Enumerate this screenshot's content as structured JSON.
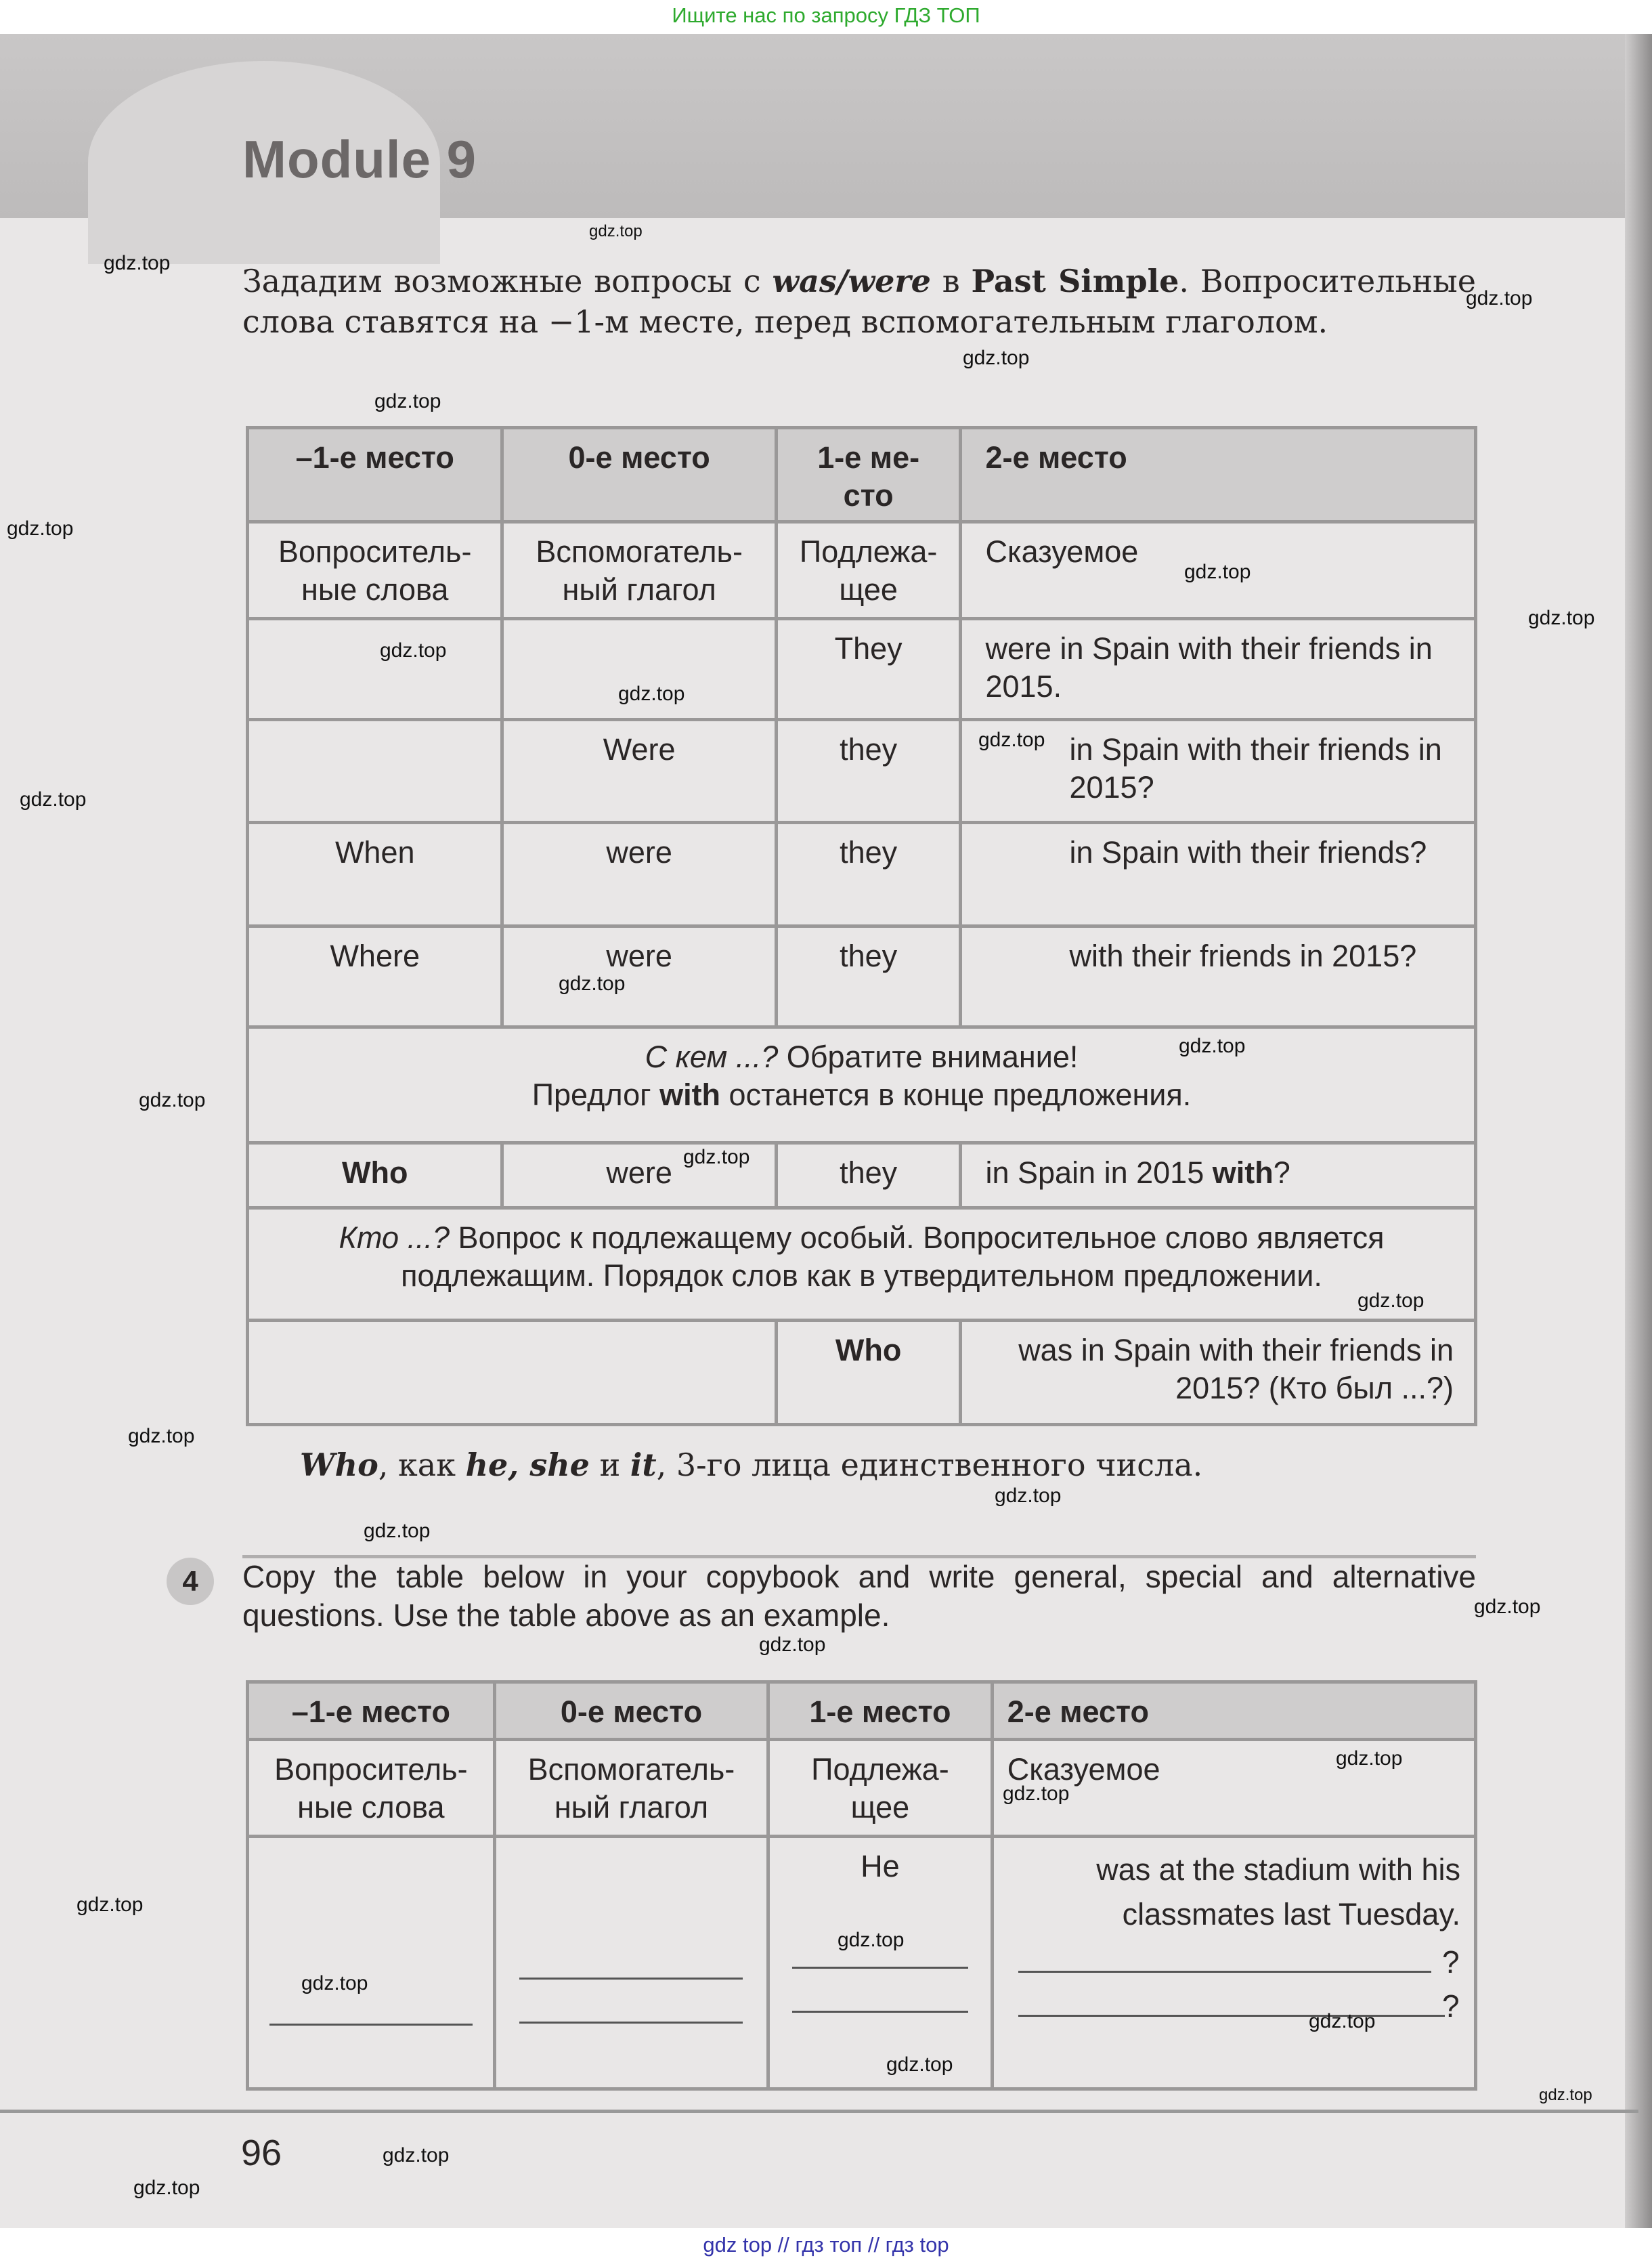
{
  "banner": {
    "text": "Ищите нас по запросу ГДЗ ТОП"
  },
  "header": {
    "title": "Module 9"
  },
  "intro": {
    "p1": "Зададим возможные вопросы с ",
    "p1_italic": "was/were",
    "p1_mid": " в ",
    "p1_bold": "Past Simple",
    "p1_end": ". Вопросительные слова ставятся на −1-м месте, перед вспомогательным глаголом."
  },
  "table1": {
    "headers": [
      "–1-е место",
      "0-е место",
      "1-е ме-\nсто",
      "2-е место"
    ],
    "roles": [
      "Вопроситель-\nные слова",
      "Вспомогатель-\nный глагол",
      "Подлежа-\nщее",
      "Сказуемое"
    ],
    "rows": [
      [
        "",
        "",
        "They",
        "were in Spain with their friends in 2015."
      ],
      [
        "",
        "Were",
        "they",
        "in Spain with their friends in 2015?"
      ],
      [
        "When",
        "were",
        "they",
        "in Spain with their friends?"
      ],
      [
        "Where",
        "were",
        "they",
        "with their friends in 2015?"
      ]
    ],
    "note1": {
      "italic": "С кем ...?",
      "text": " Обратите внимание!",
      "line2_pre": "Предлог ",
      "line2_bold": "with",
      "line2_post": " останется в конце предложения."
    },
    "who_row": {
      "c0": "Who",
      "c1": "were",
      "c2": "they",
      "c3_pre": "in Spain in 2015 ",
      "c3_bold": "with",
      "c3_post": "?"
    },
    "note2": {
      "italic": "Кто ...?",
      "text": " Вопрос к подлежащему особый. Вопросительное слово является подлежащим. Порядок слов как в утвердительном предложении."
    },
    "who_subject_row": {
      "c2": "Who",
      "c3": "was in Spain with their friends in 2015? (Кто был ...?)"
    }
  },
  "who_note": {
    "who": "Who",
    "t1": ", как ",
    "he": "he, she",
    "t2": " и ",
    "it": "it",
    "t3": ", 3-го лица единственного числа."
  },
  "exercise4": {
    "number": "4",
    "text": "Copy the table below in your copybook and write general, special and alternative questions. Use the table above as an example.",
    "headers": [
      "–1-е место",
      "0-е место",
      "1-е место",
      "2-е место"
    ],
    "roles": [
      "Вопроситель-\nные слова",
      "Вспомогатель-\nный глагол",
      "Подлежа-\nщее",
      "Сказуемое"
    ],
    "subject": "He",
    "predicate": "was at the stadium with his classmates last Tuesday.",
    "question_mark": "?"
  },
  "page_number": "96",
  "watermark": "gdz.top",
  "footer": {
    "text": "gdz top  //  гдз топ  //  гдз top"
  }
}
